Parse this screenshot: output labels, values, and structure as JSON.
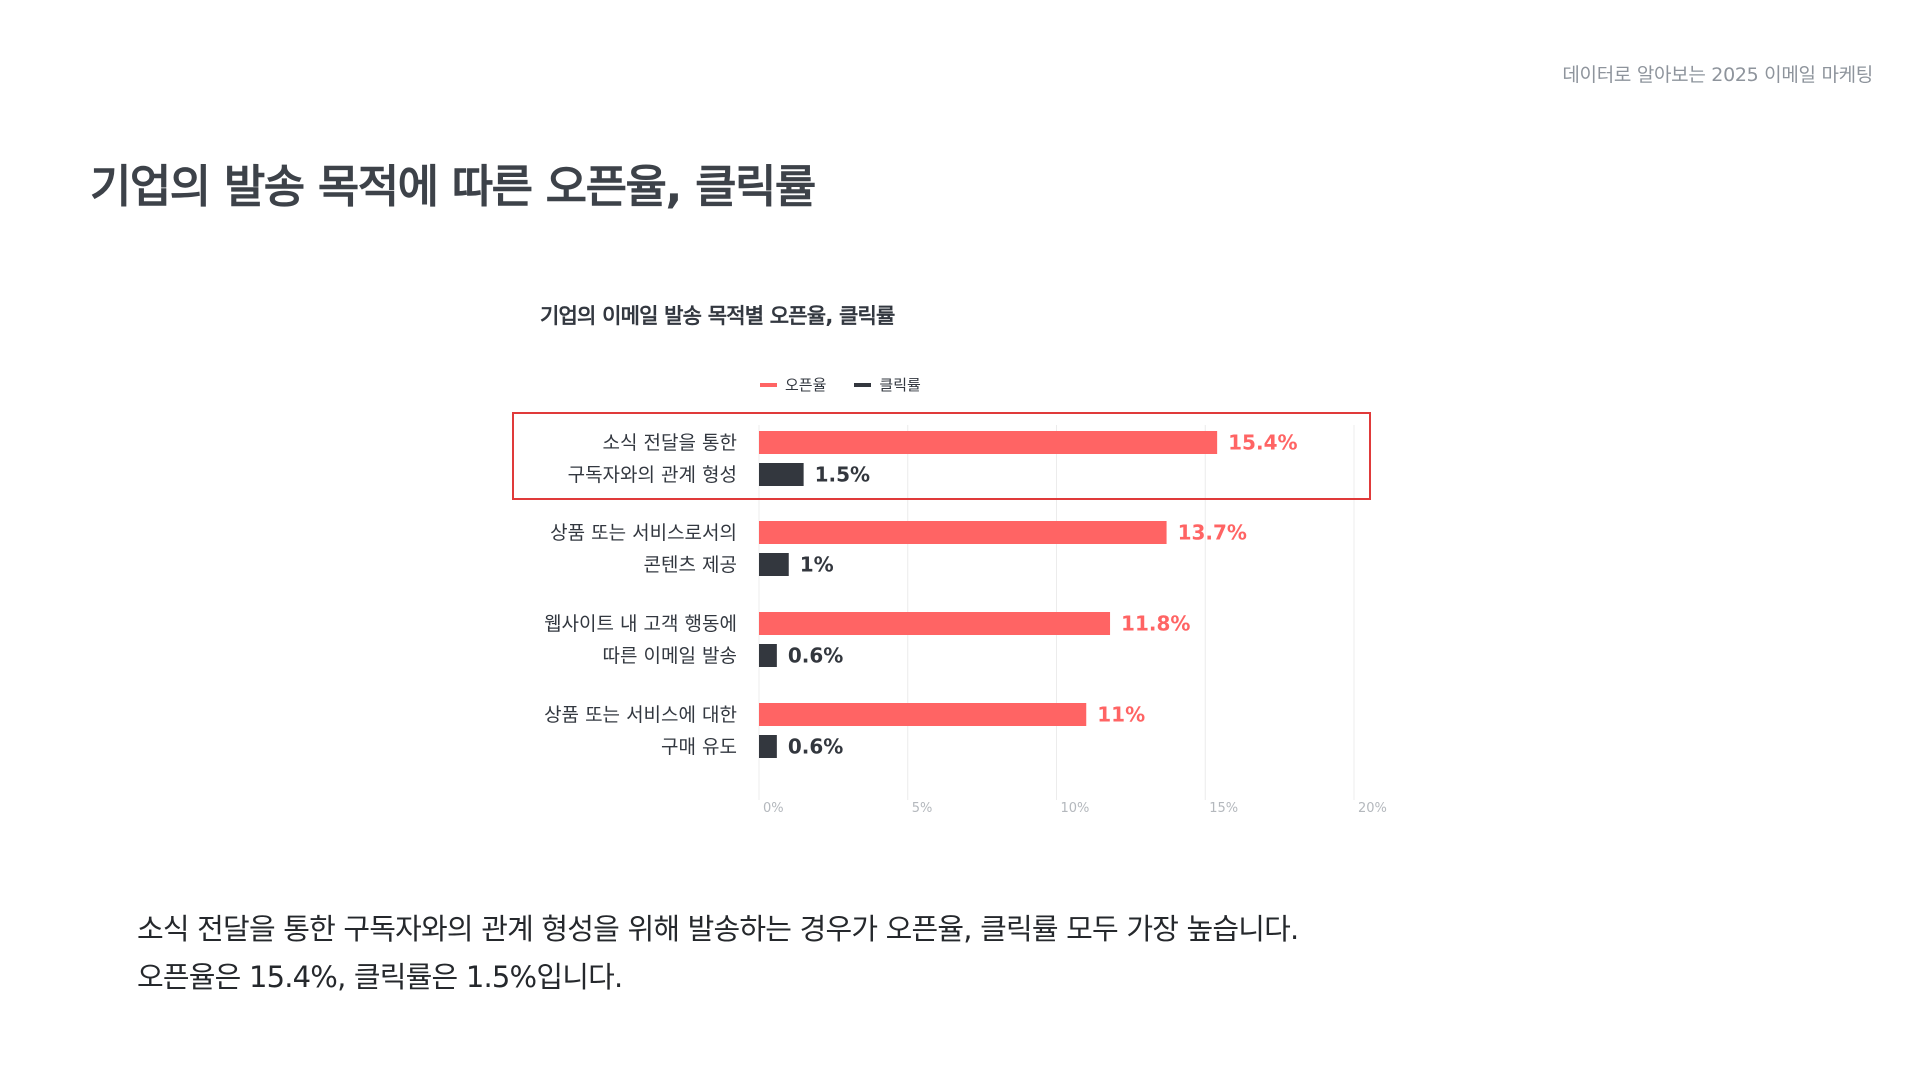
{
  "header": {
    "label": "데이터로 알아보는 2025 이메일 마케팅"
  },
  "page_title": "기업의 발송 목적에 따른 오픈율, 클릭률",
  "description": {
    "line1": "소식 전달을 통한 구독자와의 관계 형성을 위해 발송하는 경우가 오픈율, 클릭률 모두 가장 높습니다.",
    "line2": "오픈율은 15.4%, 클릭률은 1.5%입니다."
  },
  "colors": {
    "open_rate": "#ff6464",
    "click_rate": "#33373e",
    "gridline": "#ececec",
    "tick": "#b4b8bd",
    "highlight": "#e03a3a"
  },
  "chart_data": {
    "type": "bar",
    "orientation": "horizontal",
    "title": "기업의 이메일 발송 목적별 오픈율, 클릭률",
    "legend_position": "top",
    "categories": [
      [
        "소식 전달을 통한",
        "구독자와의 관계 형성"
      ],
      [
        "상품 또는 서비스로서의",
        "콘텐츠 제공"
      ],
      [
        "웹사이트 내 고객 행동에",
        "따른 이메일 발송"
      ],
      [
        "상품 또는 서비스에 대한",
        "구매 유도"
      ]
    ],
    "series": [
      {
        "name": "오픈율",
        "values": [
          15.4,
          13.7,
          11.8,
          11
        ],
        "labels": [
          "15.4%",
          "13.7%",
          "11.8%",
          "11%"
        ]
      },
      {
        "name": "클릭률",
        "values": [
          1.5,
          1,
          0.6,
          0.6
        ],
        "labels": [
          "1.5%",
          "1%",
          "0.6%",
          "0.6%"
        ]
      }
    ],
    "xlim": [
      0,
      20
    ],
    "xticks": [
      0,
      5,
      10,
      15,
      20
    ],
    "xtick_labels": [
      "0%",
      "5%",
      "10%",
      "15%",
      "20%"
    ],
    "grid": true,
    "highlighted_category_index": 0
  }
}
